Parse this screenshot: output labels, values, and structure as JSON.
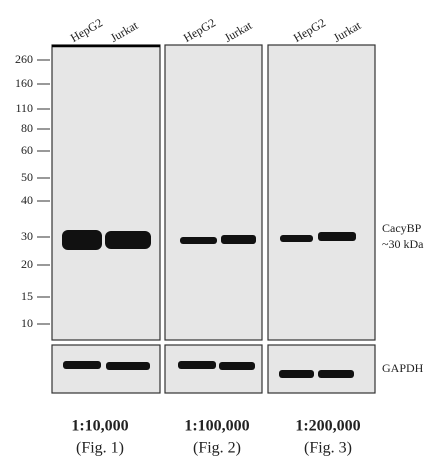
{
  "lanes": [
    [
      "HepG2",
      "Jurkat"
    ],
    [
      "HepG2",
      "Jurkat"
    ],
    [
      "HepG2",
      "Jurkat"
    ]
  ],
  "markers": [
    260,
    160,
    110,
    80,
    60,
    50,
    40,
    30,
    20,
    15,
    10
  ],
  "target": {
    "name": "CacyBP",
    "size": "~30 kDa"
  },
  "control": "GAPDH",
  "dilutions": [
    {
      "ratio": "1:10,000",
      "figure": "(Fig. 1)"
    },
    {
      "ratio": "1:100,000",
      "figure": "(Fig. 2)"
    },
    {
      "ratio": "1:200,000",
      "figure": "(Fig. 3)"
    }
  ]
}
